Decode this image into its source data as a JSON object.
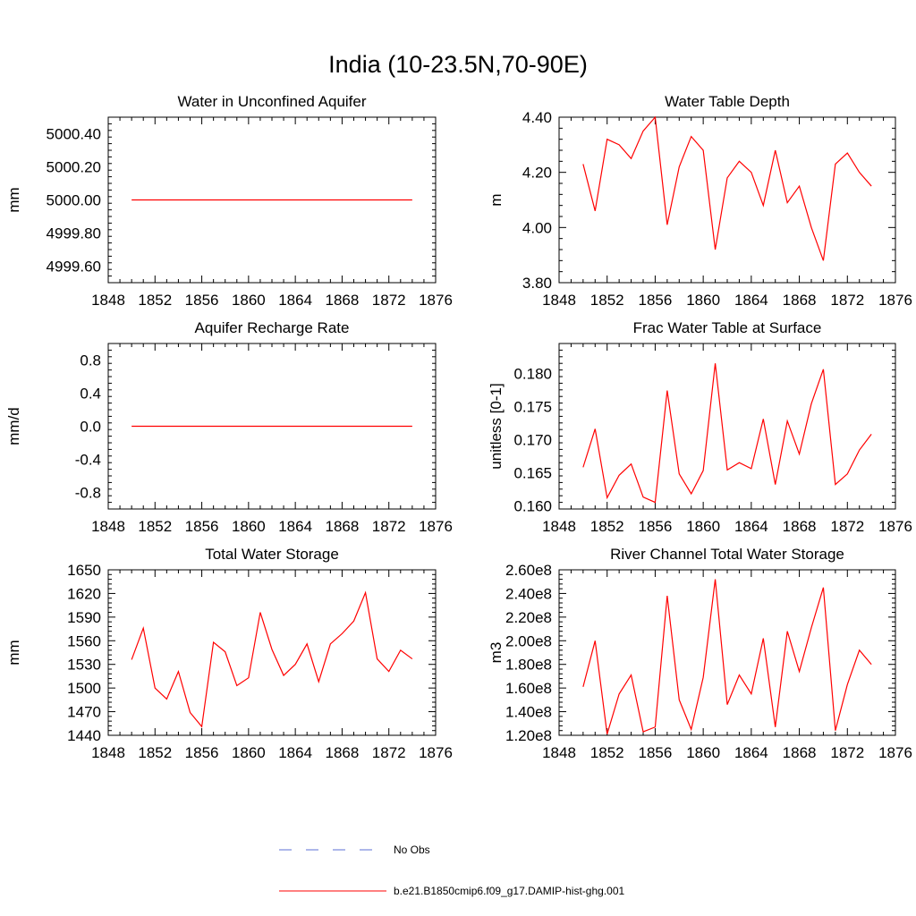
{
  "figure": {
    "title": "India (10-23.5N,70-90E)"
  },
  "legend": {
    "entries": [
      {
        "label": "No Obs",
        "color": "#5b6fd6",
        "style": "dashed"
      },
      {
        "label": "b.e21.B1850cmip6.f09_g17.DAMIP-hist-ghg.001",
        "color": "#ff0000",
        "style": "solid"
      }
    ]
  },
  "chart_data": [
    {
      "type": "line",
      "title": "Water in Unconfined Aquifer",
      "xlabel": "",
      "ylabel": "mm",
      "xlim": [
        1848,
        1876
      ],
      "ylim": [
        4999.5,
        5000.5
      ],
      "xticks": [
        1848,
        1852,
        1856,
        1860,
        1864,
        1868,
        1872,
        1876
      ],
      "xtick_labels": [
        "1848",
        "1852",
        "1856",
        "1860",
        "1864",
        "1868",
        "1872",
        "1876"
      ],
      "yticks": [
        4999.6,
        4999.8,
        5000.0,
        5000.2,
        5000.4
      ],
      "ytick_labels": [
        "4999.60",
        "4999.80",
        "5000.00",
        "5000.20",
        "5000.40"
      ],
      "x": [
        1850,
        1851,
        1852,
        1853,
        1854,
        1855,
        1856,
        1857,
        1858,
        1859,
        1860,
        1861,
        1862,
        1863,
        1864,
        1865,
        1866,
        1867,
        1868,
        1869,
        1870,
        1871,
        1872,
        1873,
        1874
      ],
      "series": [
        {
          "name": "b.e21.B1850cmip6.f09_g17.DAMIP-hist-ghg.001",
          "color": "#ff0000",
          "values": [
            5000,
            5000,
            5000,
            5000,
            5000,
            5000,
            5000,
            5000,
            5000,
            5000,
            5000,
            5000,
            5000,
            5000,
            5000,
            5000,
            5000,
            5000,
            5000,
            5000,
            5000,
            5000,
            5000,
            5000,
            5000
          ]
        }
      ]
    },
    {
      "type": "line",
      "title": "Water Table Depth",
      "xlabel": "",
      "ylabel": "m",
      "xlim": [
        1848,
        1876
      ],
      "ylim": [
        3.8,
        4.4
      ],
      "xticks": [
        1848,
        1852,
        1856,
        1860,
        1864,
        1868,
        1872,
        1876
      ],
      "xtick_labels": [
        "1848",
        "1852",
        "1856",
        "1860",
        "1864",
        "1868",
        "1872",
        "1876"
      ],
      "yticks": [
        3.8,
        4.0,
        4.2,
        4.4
      ],
      "ytick_labels": [
        "3.80",
        "4.00",
        "4.20",
        "4.40"
      ],
      "x": [
        1850,
        1851,
        1852,
        1853,
        1854,
        1855,
        1856,
        1857,
        1858,
        1859,
        1860,
        1861,
        1862,
        1863,
        1864,
        1865,
        1866,
        1867,
        1868,
        1869,
        1870,
        1871,
        1872,
        1873,
        1874
      ],
      "series": [
        {
          "name": "b.e21.B1850cmip6.f09_g17.DAMIP-hist-ghg.001",
          "color": "#ff0000",
          "values": [
            4.23,
            4.06,
            4.32,
            4.3,
            4.25,
            4.35,
            4.4,
            4.01,
            4.22,
            4.33,
            4.28,
            3.92,
            4.18,
            4.24,
            4.2,
            4.08,
            4.28,
            4.09,
            4.15,
            4.0,
            3.88,
            4.23,
            4.27,
            4.2,
            4.15
          ]
        }
      ]
    },
    {
      "type": "line",
      "title": "Aquifer Recharge Rate",
      "xlabel": "",
      "ylabel": "mm/d",
      "xlim": [
        1848,
        1876
      ],
      "ylim": [
        -1.0,
        1.0
      ],
      "xticks": [
        1848,
        1852,
        1856,
        1860,
        1864,
        1868,
        1872,
        1876
      ],
      "xtick_labels": [
        "1848",
        "1852",
        "1856",
        "1860",
        "1864",
        "1868",
        "1872",
        "1876"
      ],
      "yticks": [
        -0.8,
        -0.4,
        0.0,
        0.4,
        0.8
      ],
      "ytick_labels": [
        "-0.8",
        "-0.4",
        "0.0",
        "0.4",
        "0.8"
      ],
      "x": [
        1850,
        1851,
        1852,
        1853,
        1854,
        1855,
        1856,
        1857,
        1858,
        1859,
        1860,
        1861,
        1862,
        1863,
        1864,
        1865,
        1866,
        1867,
        1868,
        1869,
        1870,
        1871,
        1872,
        1873,
        1874
      ],
      "series": [
        {
          "name": "b.e21.B1850cmip6.f09_g17.DAMIP-hist-ghg.001",
          "color": "#ff0000",
          "values": [
            0,
            0,
            0,
            0,
            0,
            0,
            0,
            0,
            0,
            0,
            0,
            0,
            0,
            0,
            0,
            0,
            0,
            0,
            0,
            0,
            0,
            0,
            0,
            0,
            0
          ]
        }
      ]
    },
    {
      "type": "line",
      "title": "Frac Water Table at Surface",
      "xlabel": "",
      "ylabel": "unitless [0-1]",
      "xlim": [
        1848,
        1876
      ],
      "ylim": [
        0.1595,
        0.1845
      ],
      "xticks": [
        1848,
        1852,
        1856,
        1860,
        1864,
        1868,
        1872,
        1876
      ],
      "xtick_labels": [
        "1848",
        "1852",
        "1856",
        "1860",
        "1864",
        "1868",
        "1872",
        "1876"
      ],
      "yticks": [
        0.16,
        0.165,
        0.17,
        0.175,
        0.18
      ],
      "ytick_labels": [
        "0.160",
        "0.165",
        "0.170",
        "0.175",
        "0.180"
      ],
      "x": [
        1850,
        1851,
        1852,
        1853,
        1854,
        1855,
        1856,
        1857,
        1858,
        1859,
        1860,
        1861,
        1862,
        1863,
        1864,
        1865,
        1866,
        1867,
        1868,
        1869,
        1870,
        1871,
        1872,
        1873,
        1874
      ],
      "series": [
        {
          "name": "b.e21.B1850cmip6.f09_g17.DAMIP-hist-ghg.001",
          "color": "#ff0000",
          "values": [
            0.1658,
            0.1716,
            0.1612,
            0.1646,
            0.1663,
            0.1613,
            0.1605,
            0.1774,
            0.1648,
            0.1618,
            0.1653,
            0.1815,
            0.1654,
            0.1665,
            0.1656,
            0.1731,
            0.1632,
            0.1728,
            0.1678,
            0.1754,
            0.1806,
            0.1632,
            0.1648,
            0.1684,
            0.1708
          ]
        }
      ]
    },
    {
      "type": "line",
      "title": "Total Water Storage",
      "xlabel": "",
      "ylabel": "mm",
      "xlim": [
        1848,
        1876
      ],
      "ylim": [
        1440,
        1650
      ],
      "xticks": [
        1848,
        1852,
        1856,
        1860,
        1864,
        1868,
        1872,
        1876
      ],
      "xtick_labels": [
        "1848",
        "1852",
        "1856",
        "1860",
        "1864",
        "1868",
        "1872",
        "1876"
      ],
      "yticks": [
        1440,
        1470,
        1500,
        1530,
        1560,
        1590,
        1620,
        1650
      ],
      "ytick_labels": [
        "1440",
        "1470",
        "1500",
        "1530",
        "1560",
        "1590",
        "1620",
        "1650"
      ],
      "x": [
        1850,
        1851,
        1852,
        1853,
        1854,
        1855,
        1856,
        1857,
        1858,
        1859,
        1860,
        1861,
        1862,
        1863,
        1864,
        1865,
        1866,
        1867,
        1868,
        1869,
        1870,
        1871,
        1872,
        1873,
        1874
      ],
      "series": [
        {
          "name": "b.e21.B1850cmip6.f09_g17.DAMIP-hist-ghg.001",
          "color": "#ff0000",
          "values": [
            1536,
            1576,
            1500,
            1486,
            1521,
            1469,
            1451,
            1558,
            1546,
            1503,
            1513,
            1596,
            1549,
            1516,
            1530,
            1556,
            1508,
            1556,
            1569,
            1585,
            1621,
            1537,
            1521,
            1548,
            1537
          ]
        }
      ]
    },
    {
      "type": "line",
      "title": "River Channel Total Water Storage",
      "xlabel": "",
      "ylabel": "m3",
      "xlim": [
        1848,
        1876
      ],
      "ylim": [
        120000000.0,
        260000000.0
      ],
      "xticks": [
        1848,
        1852,
        1856,
        1860,
        1864,
        1868,
        1872,
        1876
      ],
      "xtick_labels": [
        "1848",
        "1852",
        "1856",
        "1860",
        "1864",
        "1868",
        "1872",
        "1876"
      ],
      "yticks": [
        120000000.0,
        140000000.0,
        160000000.0,
        180000000.0,
        200000000.0,
        220000000.0,
        240000000.0,
        260000000.0
      ],
      "ytick_labels": [
        "1.20e8",
        "1.40e8",
        "1.60e8",
        "1.80e8",
        "2.00e8",
        "2.20e8",
        "2.40e8",
        "2.60e8"
      ],
      "x": [
        1850,
        1851,
        1852,
        1853,
        1854,
        1855,
        1856,
        1857,
        1858,
        1859,
        1860,
        1861,
        1862,
        1863,
        1864,
        1865,
        1866,
        1867,
        1868,
        1869,
        1870,
        1871,
        1872,
        1873,
        1874
      ],
      "series": [
        {
          "name": "b.e21.B1850cmip6.f09_g17.DAMIP-hist-ghg.001",
          "color": "#ff0000",
          "values": [
            161000000.0,
            200000000.0,
            121000000.0,
            155000000.0,
            171000000.0,
            123000000.0,
            127000000.0,
            238000000.0,
            150000000.0,
            125000000.0,
            169000000.0,
            252000000.0,
            146000000.0,
            171000000.0,
            155000000.0,
            202000000.0,
            127000000.0,
            208000000.0,
            174000000.0,
            211000000.0,
            245000000.0,
            124000000.0,
            163000000.0,
            192000000.0,
            180000000.0
          ]
        }
      ]
    }
  ]
}
